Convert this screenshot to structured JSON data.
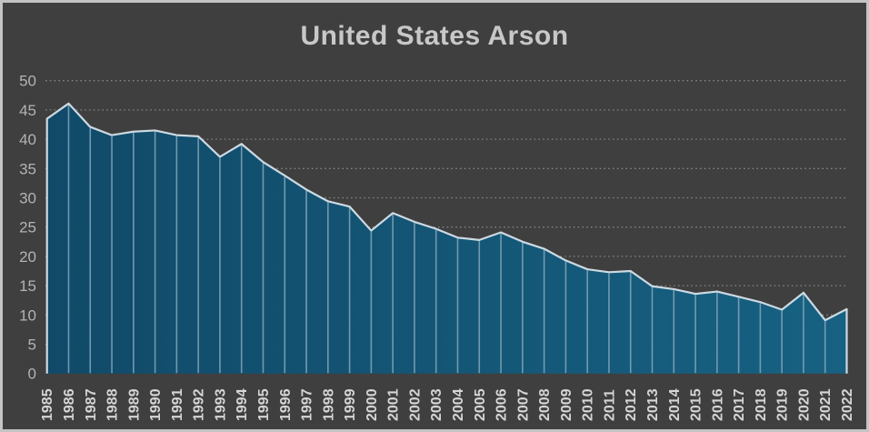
{
  "window": {
    "background_color": "#3f3f3f",
    "border_color": "#c4c4c4"
  },
  "chart_data": {
    "type": "area",
    "title": "United States Arson",
    "categories": [
      "1985",
      "1986",
      "1987",
      "1988",
      "1989",
      "1990",
      "1991",
      "1992",
      "1993",
      "1994",
      "1995",
      "1996",
      "1997",
      "1998",
      "1999",
      "2000",
      "2001",
      "2002",
      "2003",
      "2004",
      "2005",
      "2006",
      "2007",
      "2008",
      "2009",
      "2010",
      "2011",
      "2012",
      "2013",
      "2014",
      "2015",
      "2016",
      "2017",
      "2018",
      "2019",
      "2020",
      "2021",
      "2022"
    ],
    "values": [
      43.5,
      46.1,
      42.1,
      40.7,
      41.3,
      41.5,
      40.7,
      40.5,
      37.0,
      39.2,
      36.1,
      33.8,
      31.4,
      29.4,
      28.5,
      24.4,
      27.4,
      25.9,
      24.7,
      23.2,
      22.8,
      24.1,
      22.5,
      21.3,
      19.3,
      17.8,
      17.3,
      17.5,
      14.9,
      14.4,
      13.6,
      14.0,
      13.1,
      12.2,
      10.9,
      13.8,
      9.1,
      11.0
    ],
    "xlabel": "",
    "ylabel": "",
    "ylim": [
      0,
      50
    ],
    "yticks": [
      0,
      5,
      10,
      15,
      20,
      25,
      30,
      35,
      40,
      45,
      50
    ],
    "grid": "dotted-horizontal",
    "legend_position": "none",
    "colors": {
      "area_fill_left": "#114a69",
      "area_fill_right": "#176182",
      "area_outline": "#d6e2ea",
      "year_divider": "#7ca2b5",
      "gridline": "#9c9c9c",
      "y_tick_label": "#b3b3b3",
      "x_tick_label": "#d5d5d5",
      "title": "#c8c8c8"
    }
  }
}
